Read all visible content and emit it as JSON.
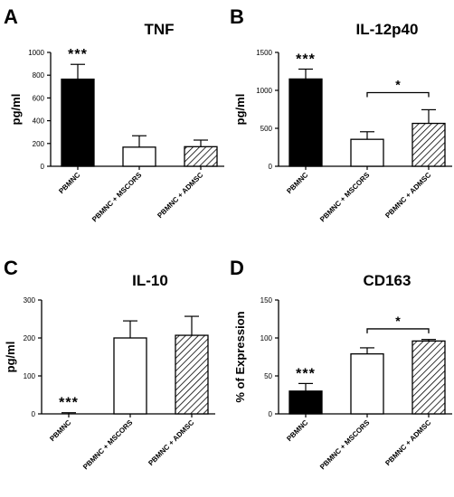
{
  "chart_data": [
    {
      "panel": "A",
      "title": "TNF",
      "type": "bar",
      "ylabel": "pg/ml",
      "ylim": [
        0,
        1000
      ],
      "yticks": [
        "0",
        "200",
        "400",
        "600",
        "800",
        "1000"
      ],
      "categories": [
        "PBMNC",
        "PBMNC + MSCORS",
        "PBMNC + ADMSC"
      ],
      "values": [
        765,
        168,
        172
      ],
      "errors": [
        130,
        100,
        58
      ],
      "fills": [
        "solid",
        "empty",
        "hatched"
      ],
      "bar_significance": [
        "***",
        "",
        ""
      ],
      "comparisons": []
    },
    {
      "panel": "B",
      "title": "IL-12p40",
      "type": "bar",
      "ylabel": "pg/ml",
      "ylim": [
        0,
        1500
      ],
      "yticks": [
        "0",
        "500",
        "1000",
        "1500"
      ],
      "categories": [
        "PBMNC",
        "PBMNC + MSCORS",
        "PBMNC + ADMSC"
      ],
      "values": [
        1150,
        355,
        565
      ],
      "errors": [
        130,
        100,
        180
      ],
      "fills": [
        "solid",
        "empty",
        "hatched"
      ],
      "bar_significance": [
        "***",
        "",
        ""
      ],
      "comparisons": [
        {
          "from": 1,
          "to": 2,
          "label": "*",
          "at": 970
        }
      ]
    },
    {
      "panel": "C",
      "title": "IL-10",
      "type": "bar",
      "ylabel": "pg/ml",
      "ylim": [
        0,
        300
      ],
      "yticks": [
        "0",
        "100",
        "200",
        "300"
      ],
      "categories": [
        "PBMNC",
        "PBMNC + MSCORS",
        "PBMNC + ADMSC"
      ],
      "values": [
        0,
        200,
        207
      ],
      "errors": [
        3,
        45,
        50
      ],
      "fills": [
        "solid",
        "empty",
        "hatched"
      ],
      "bar_significance": [
        "***",
        "",
        ""
      ],
      "comparisons": []
    },
    {
      "panel": "D",
      "title": "CD163",
      "type": "bar",
      "ylabel": "% of Expression",
      "ylim": [
        0,
        150
      ],
      "yticks": [
        "0",
        "50",
        "100",
        "150"
      ],
      "categories": [
        "PBMNC",
        "PBMNC + MSCORS",
        "PBMNC + ADMSC"
      ],
      "values": [
        30,
        79,
        96
      ],
      "errors": [
        10,
        8,
        2
      ],
      "fills": [
        "solid",
        "empty",
        "hatched"
      ],
      "bar_significance": [
        "***",
        "",
        ""
      ],
      "comparisons": [
        {
          "from": 1,
          "to": 2,
          "label": "*",
          "at": 112
        }
      ]
    }
  ]
}
